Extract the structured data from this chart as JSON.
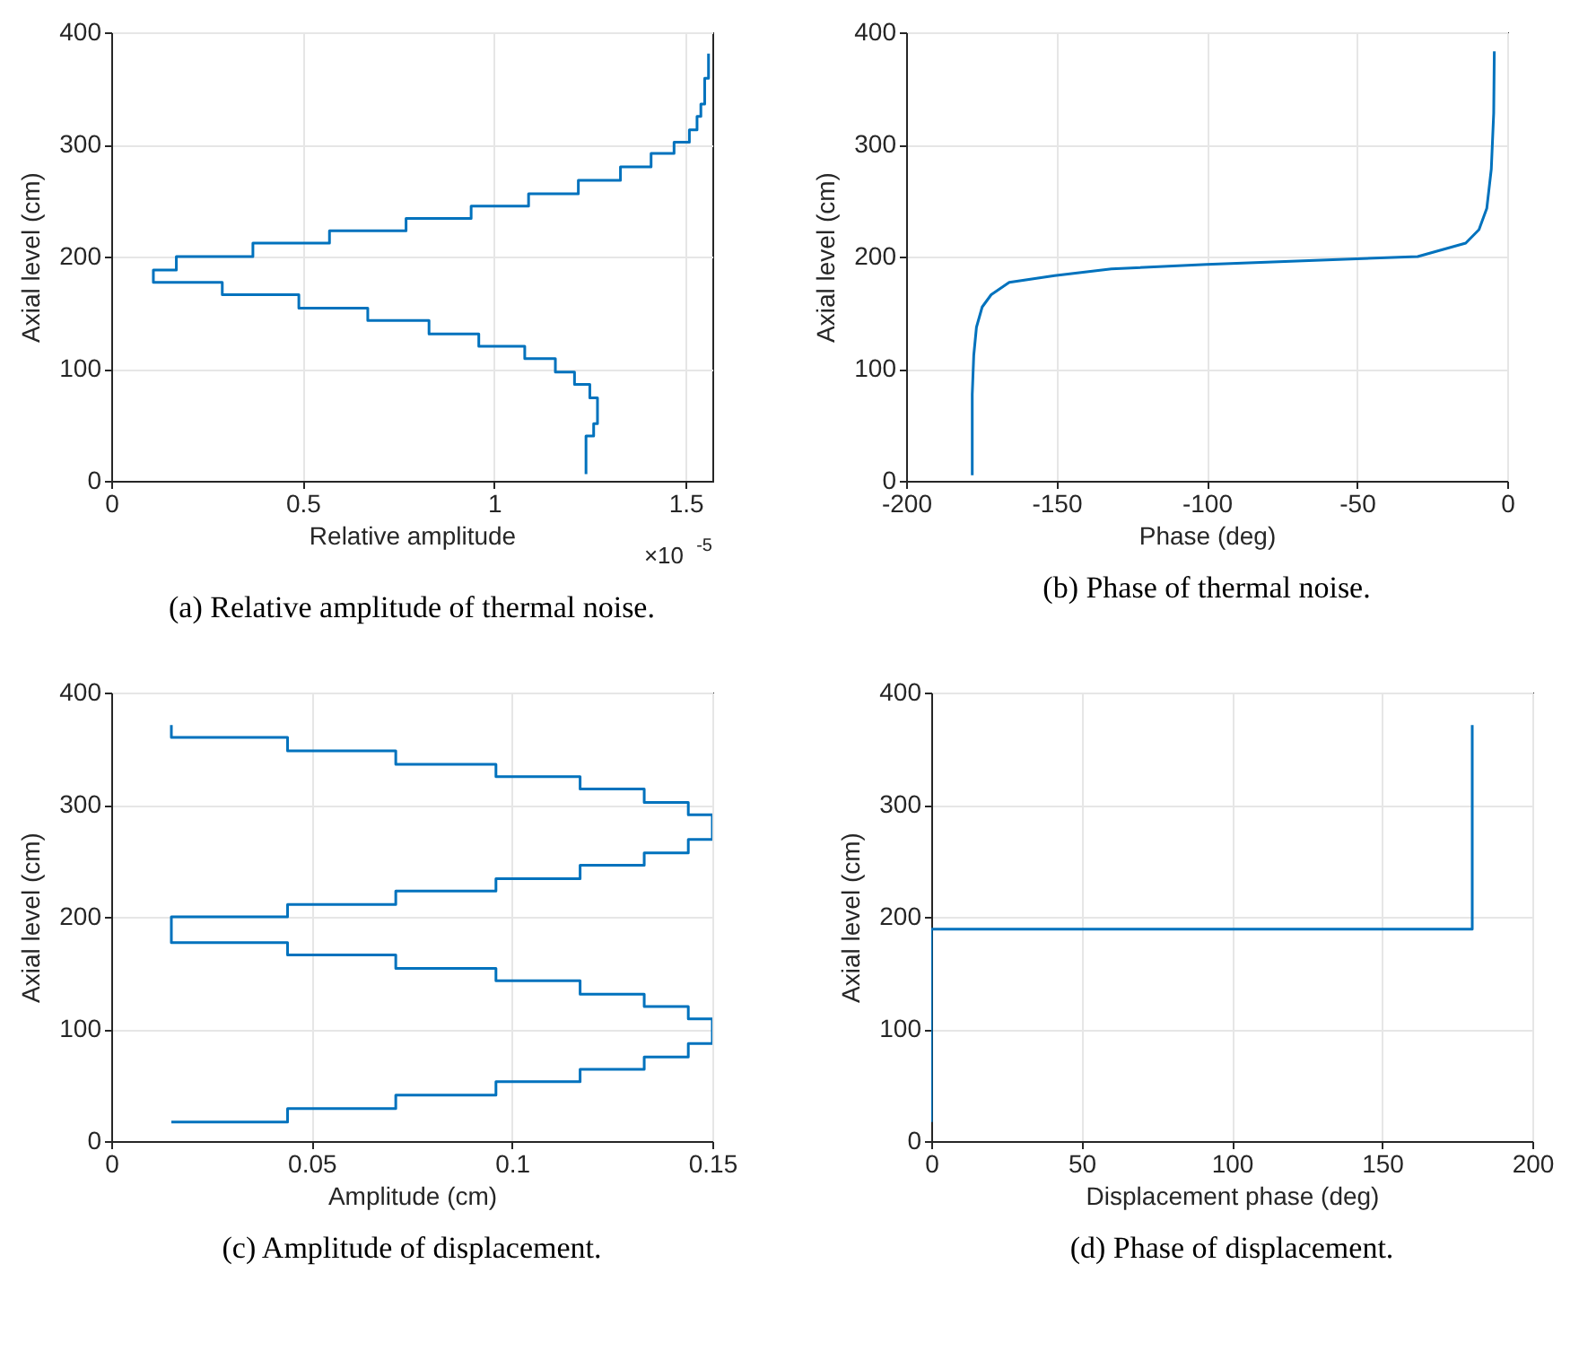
{
  "chart_data": [
    {
      "type": "line",
      "title": "(a) Relative amplitude of thermal noise.",
      "xlabel": "Relative amplitude",
      "ylabel": "Axial level (cm)",
      "annotations": [
        "×10$^{-5}$"
      ],
      "xlim": [
        0,
        1.57
      ],
      "xticks": [
        0,
        0.5,
        1,
        1.5
      ],
      "ylim": [
        0,
        400
      ],
      "yticks": [
        0,
        100,
        200,
        300,
        400
      ],
      "grid": true,
      "series": [
        {
          "color": "#0072bd",
          "x": [
            1.24,
            1.24,
            1.24,
            1.24,
            1.26,
            1.26,
            1.27,
            1.27,
            1.25,
            1.25,
            1.21,
            1.21,
            1.16,
            1.16,
            1.08,
            1.08,
            0.96,
            0.96,
            0.83,
            0.83,
            0.67,
            0.67,
            0.49,
            0.49,
            0.29,
            0.29,
            0.11,
            0.11,
            0.17,
            0.17,
            0.37,
            0.37,
            0.57,
            0.57,
            0.77,
            0.77,
            0.94,
            0.94,
            1.09,
            1.09,
            1.22,
            1.22,
            1.33,
            1.33,
            1.41,
            1.41,
            1.47,
            1.47,
            1.51,
            1.51,
            1.53,
            1.53,
            1.54,
            1.54,
            1.55,
            1.55,
            1.55,
            1.55,
            1.56,
            1.56,
            1.56,
            1.56
          ],
          "values": [
            6,
            29,
            29,
            40,
            40,
            51,
            51,
            74,
            74,
            86,
            86,
            97,
            97,
            109,
            109,
            120,
            120,
            131,
            131,
            143,
            143,
            154,
            154,
            166,
            166,
            177,
            177,
            188,
            188,
            200,
            200,
            212,
            212,
            223,
            223,
            234,
            234,
            245,
            245,
            256,
            256,
            268,
            268,
            280,
            280,
            292,
            292,
            302,
            302,
            313,
            313,
            325,
            325,
            336,
            336,
            348,
            348,
            359,
            359,
            370,
            370,
            381
          ]
        }
      ]
    },
    {
      "type": "line",
      "title": "(b) Phase of thermal noise.",
      "xlabel": "Phase (deg)",
      "ylabel": "Axial level (cm)",
      "xlim": [
        -200,
        0
      ],
      "xticks": [
        -200,
        -150,
        -100,
        -50,
        0
      ],
      "ylim": [
        0,
        400
      ],
      "yticks": [
        0,
        100,
        200,
        300,
        400
      ],
      "grid": true,
      "series": [
        {
          "color": "#0072bd",
          "x": [
            -178,
            -178,
            -177.5,
            -176.6,
            -174.7,
            -171.7,
            -165.7,
            -150.6,
            -131.7,
            -100,
            -50,
            -29.8,
            -13.8,
            -9.4,
            -6.8,
            -5.3,
            -4.5,
            -4.3
          ],
          "values": [
            5,
            77,
            112,
            137,
            155,
            166,
            177,
            183,
            189,
            193,
            198,
            200,
            212,
            224,
            243,
            278,
            328,
            383
          ]
        }
      ]
    },
    {
      "type": "line",
      "title": "(c) Amplitude of displacement.",
      "xlabel": "Amplitude (cm)",
      "ylabel": "Axial level (cm)",
      "xlim": [
        0,
        0.15
      ],
      "xticks": [
        0,
        0.05,
        0.1,
        0.15
      ],
      "ylim": [
        0,
        400
      ],
      "yticks": [
        0,
        100,
        200,
        300,
        400
      ],
      "grid": true,
      "series": [
        {
          "color": "#0072bd",
          "x": [
            0.015,
            0.044,
            0.044,
            0.071,
            0.071,
            0.096,
            0.096,
            0.117,
            0.117,
            0.133,
            0.133,
            0.144,
            0.144,
            0.15,
            0.15,
            0.144,
            0.144,
            0.133,
            0.133,
            0.117,
            0.117,
            0.096,
            0.096,
            0.071,
            0.071,
            0.044,
            0.044,
            0.015,
            0.015,
            0.044,
            0.044,
            0.071,
            0.071,
            0.096,
            0.096,
            0.117,
            0.117,
            0.133,
            0.133,
            0.144,
            0.144,
            0.15,
            0.15,
            0.144,
            0.144,
            0.133,
            0.133,
            0.117,
            0.117,
            0.096,
            0.096,
            0.071,
            0.071,
            0.044,
            0.044,
            0.015,
            0.015
          ],
          "values": [
            17,
            17,
            29,
            29,
            41,
            41,
            53,
            53,
            64,
            64,
            75,
            75,
            87,
            87,
            109,
            109,
            120,
            120,
            131,
            131,
            143,
            143,
            154,
            154,
            166,
            166,
            177,
            177,
            200,
            200,
            211,
            211,
            223,
            223,
            234,
            234,
            246,
            246,
            257,
            257,
            269,
            269,
            291,
            291,
            302,
            302,
            314,
            314,
            325,
            325,
            336,
            336,
            348,
            348,
            360,
            360,
            371
          ]
        }
      ]
    },
    {
      "type": "line",
      "title": "(d) Phase of displacement.",
      "xlabel": "Displacement phase (deg)",
      "ylabel": "Axial level (cm)",
      "xlim": [
        0,
        200
      ],
      "xticks": [
        0,
        50,
        100,
        150,
        200
      ],
      "ylim": [
        0,
        400
      ],
      "yticks": [
        0,
        100,
        200,
        300,
        400
      ],
      "grid": true,
      "series": [
        {
          "color": "#0072bd",
          "x": [
            0,
            0,
            180,
            180
          ],
          "values": [
            17,
            189,
            189,
            371
          ]
        }
      ]
    }
  ]
}
